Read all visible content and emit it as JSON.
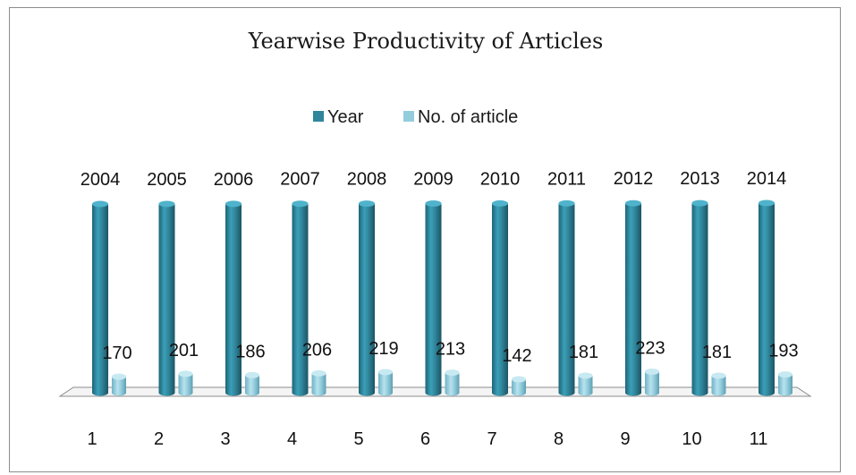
{
  "chart_data": {
    "type": "bar",
    "title": "Yearwise Productivity of Articles",
    "categories": [
      "1",
      "2",
      "3",
      "4",
      "5",
      "6",
      "7",
      "8",
      "9",
      "10",
      "11"
    ],
    "series": [
      {
        "name": "Year",
        "color": "#31869b",
        "values": [
          2004,
          2005,
          2006,
          2007,
          2008,
          2009,
          2010,
          2011,
          2012,
          2013,
          2014
        ],
        "labels": [
          "2004",
          "2005",
          "2006",
          "2007",
          "2008",
          "2009",
          "2010",
          "2011",
          "2012",
          "2013",
          "2014"
        ]
      },
      {
        "name": "No. of article",
        "color": "#93cddd",
        "values": [
          170,
          201,
          186,
          206,
          219,
          213,
          142,
          181,
          223,
          181,
          193
        ],
        "labels": [
          "170",
          "201",
          "186",
          "206",
          "219",
          "213",
          "142",
          "181",
          "223",
          "181",
          "193"
        ]
      }
    ],
    "ylim": [
      0,
      2014
    ],
    "legend_position": "top",
    "grid": false,
    "style": "3d-cylinder"
  }
}
